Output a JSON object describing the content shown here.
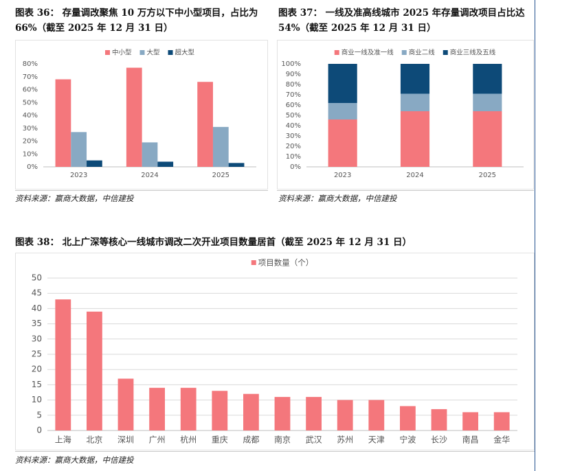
{
  "chart_data": [
    {
      "type": "bar",
      "title": "图表 36：   存量调改聚焦 10 万方以下中小型项目，占比为 66%（截至 2025 年 12 月 31 日）",
      "categories": [
        "2023",
        "2024",
        "2025"
      ],
      "series": [
        {
          "name": "中小型",
          "color": "#f4777c",
          "values": [
            68,
            77,
            66
          ]
        },
        {
          "name": "大型",
          "color": "#88a9c3",
          "values": [
            27,
            19,
            31
          ]
        },
        {
          "name": "超大型",
          "color": "#0d4a78",
          "values": [
            5,
            4,
            3
          ]
        }
      ],
      "ylim": [
        0,
        80
      ],
      "yticks": [
        {
          "value": 0,
          "label": "0%"
        },
        {
          "value": 10,
          "label": "10%"
        },
        {
          "value": 20,
          "label": "20%"
        },
        {
          "value": 30,
          "label": "30%"
        },
        {
          "value": 40,
          "label": "40%"
        },
        {
          "value": 50,
          "label": "50%"
        },
        {
          "value": 60,
          "label": "60%"
        },
        {
          "value": 70,
          "label": "70%"
        },
        {
          "value": 80,
          "label": "80%"
        }
      ],
      "grid": false,
      "legend": "top",
      "source": "资料来源：赢商大数据，中信建投"
    },
    {
      "type": "stacked_bar",
      "title": "图表 37：   一线及准高线城市 2025 年存量调改项目占比达 54%（截至 2025 年 12 月 31 日）",
      "categories": [
        "2023",
        "2024",
        "2025"
      ],
      "series": [
        {
          "name": "商业一线及准一线",
          "color": "#f4777c",
          "values": [
            46,
            54,
            54
          ]
        },
        {
          "name": "商业二线",
          "color": "#88a9c3",
          "values": [
            16,
            17,
            17
          ]
        },
        {
          "name": "商业三线及五线",
          "color": "#0d4a78",
          "values": [
            38,
            29,
            29
          ]
        }
      ],
      "ylim": [
        0,
        100
      ],
      "yticks": [
        {
          "value": 0,
          "label": "0%"
        },
        {
          "value": 10,
          "label": "10%"
        },
        {
          "value": 20,
          "label": "20%"
        },
        {
          "value": 30,
          "label": "30%"
        },
        {
          "value": 40,
          "label": "40%"
        },
        {
          "value": 50,
          "label": "50%"
        },
        {
          "value": 60,
          "label": "60%"
        },
        {
          "value": 70,
          "label": "70%"
        },
        {
          "value": 80,
          "label": "80%"
        },
        {
          "value": 90,
          "label": "90%"
        },
        {
          "value": 100,
          "label": "100%"
        }
      ],
      "grid": false,
      "legend": "top",
      "source": "资料来源：赢商大数据，中信建投"
    },
    {
      "type": "bar",
      "title": "图表 38：   北上广深等核心一线城市调改二次开业项目数量居首（截至 2025 年 12 月 31 日）",
      "categories": [
        "上海",
        "北京",
        "深圳",
        "广州",
        "杭州",
        "重庆",
        "成都",
        "南京",
        "武汉",
        "苏州",
        "天津",
        "宁波",
        "长沙",
        "南昌",
        "金华"
      ],
      "series": [
        {
          "name": "项目数量（个）",
          "color": "#f4777c",
          "values": [
            43,
            39,
            17,
            14,
            14,
            13,
            12,
            11,
            11,
            10,
            10,
            8,
            7,
            6,
            6
          ]
        }
      ],
      "ylim": [
        0,
        50
      ],
      "yticks": [
        0,
        5,
        10,
        15,
        20,
        25,
        30,
        35,
        40,
        45,
        50
      ],
      "grid": true,
      "legend": "top",
      "source": "资料来源：赢商大数据，中信建投"
    }
  ]
}
